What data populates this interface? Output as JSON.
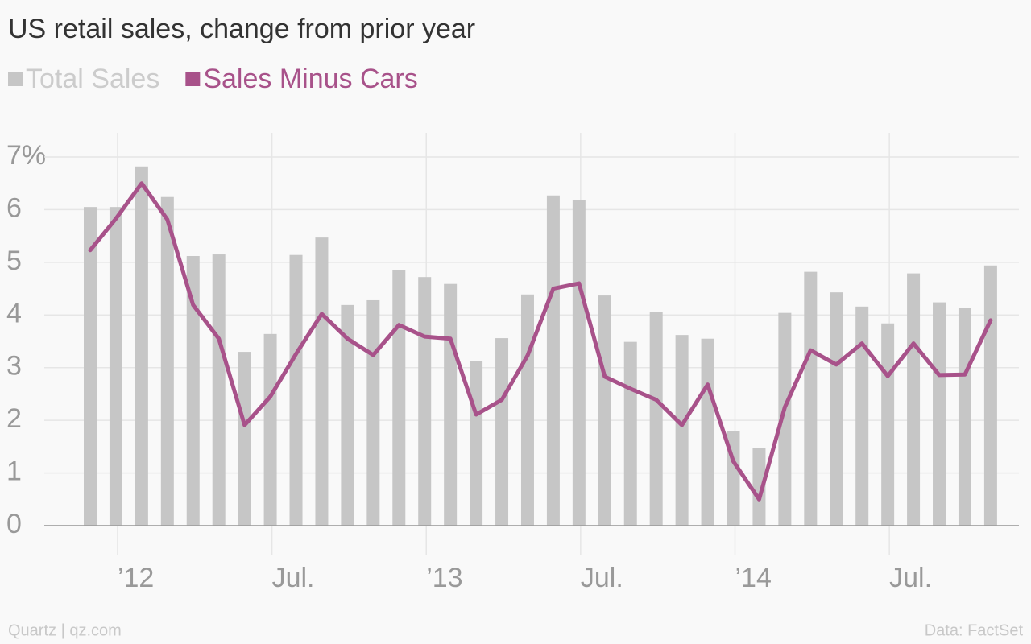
{
  "chart_data": {
    "type": "bar",
    "title": "US retail sales, change from prior year",
    "credit": "Quartz | qz.com",
    "source": "Data: FactSet",
    "categories": [
      null,
      "’12",
      null,
      null,
      null,
      null,
      null,
      "Jul.",
      null,
      null,
      null,
      null,
      null,
      "’13",
      null,
      null,
      null,
      null,
      null,
      "Jul.",
      null,
      null,
      null,
      null,
      null,
      "’14",
      null,
      null,
      null,
      null,
      null,
      "Jul.",
      null,
      null,
      null,
      null
    ],
    "series": [
      {
        "name": "Total Sales",
        "type": "bar",
        "color": "#c6c6c6",
        "values": [
          6.05,
          6.05,
          6.82,
          6.24,
          5.12,
          5.15,
          3.3,
          3.64,
          5.14,
          5.47,
          4.19,
          4.28,
          4.85,
          4.72,
          4.59,
          3.12,
          3.56,
          4.39,
          6.27,
          6.19,
          4.37,
          3.49,
          4.05,
          3.62,
          3.55,
          1.8,
          1.47,
          4.04,
          4.82,
          4.43,
          4.16,
          3.84,
          4.79,
          4.24,
          4.14,
          4.94
        ]
      },
      {
        "name": "Sales Minus Cars",
        "type": "line",
        "color": "#a8528a",
        "values": [
          5.23,
          5.83,
          6.5,
          5.81,
          4.19,
          3.55,
          1.91,
          2.45,
          3.26,
          4.02,
          3.55,
          3.24,
          3.81,
          3.59,
          3.55,
          2.11,
          2.39,
          3.23,
          4.5,
          4.6,
          2.83,
          2.6,
          2.39,
          1.91,
          2.68,
          1.22,
          0.5,
          2.25,
          3.33,
          3.06,
          3.46,
          2.84,
          3.46,
          2.86,
          2.87,
          3.9
        ]
      }
    ],
    "ylim": [
      0,
      7
    ],
    "yticks": [
      0,
      1,
      2,
      3,
      4,
      5,
      6,
      {
        "value": 7,
        "label": "7%"
      }
    ],
    "grid": true
  }
}
